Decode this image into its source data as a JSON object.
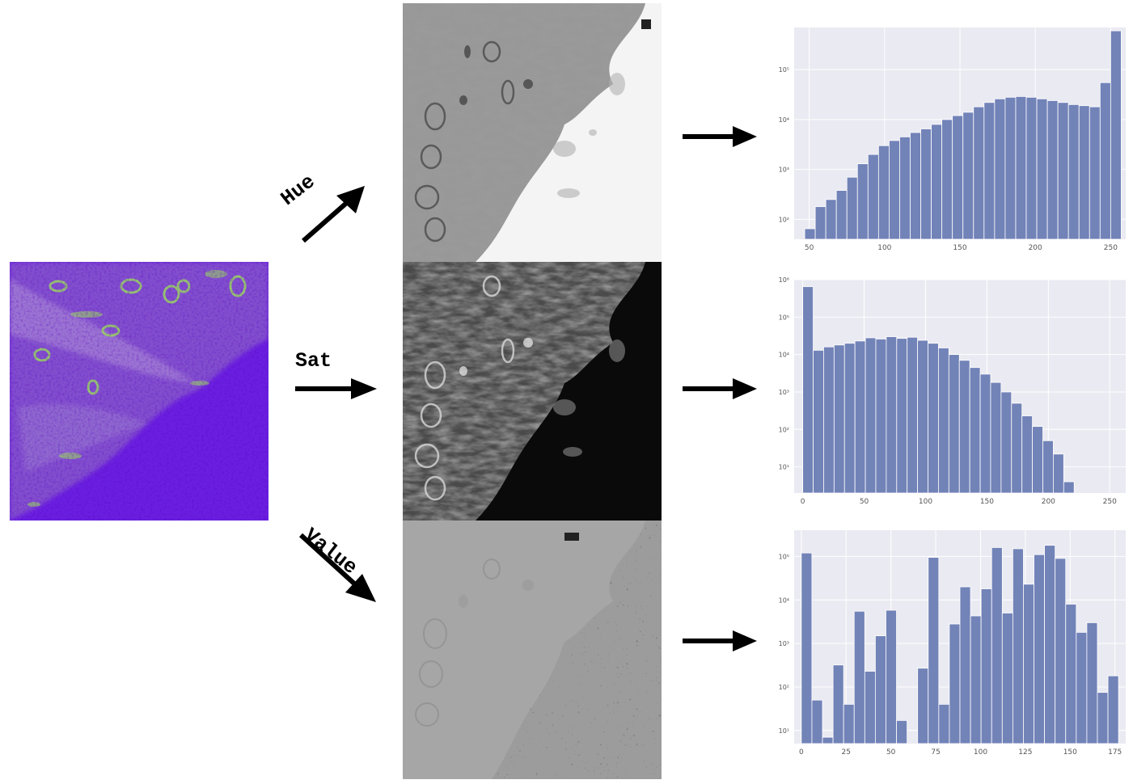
{
  "labels": {
    "hue": "Hue",
    "sat": "Sat",
    "value": "Value"
  },
  "colors": {
    "hsv_purple": "#6a1fe0",
    "hsv_green": "#8fd14f",
    "hist_bar": "#7283b8",
    "hist_bg": "#eaeaf2"
  },
  "chart_data": [
    {
      "type": "bar",
      "yscale": "log",
      "xticks": [
        "50",
        "100",
        "150",
        "200",
        "250"
      ],
      "yticks": [
        "10²",
        "10³",
        "10⁴",
        "10⁵"
      ],
      "ylim": [
        40,
        700000
      ],
      "xlim": [
        40,
        260
      ],
      "bin_start": 47,
      "bin_width": 7,
      "values": [
        65,
        180,
        250,
        380,
        700,
        1300,
        2000,
        3000,
        3800,
        4500,
        5500,
        6500,
        8000,
        10000,
        12000,
        14000,
        18000,
        22000,
        26000,
        28000,
        29000,
        28000,
        26000,
        24000,
        22000,
        20000,
        19000,
        18000,
        55000,
        600000
      ]
    },
    {
      "type": "bar",
      "yscale": "log",
      "xticks": [
        "0",
        "50",
        "100",
        "150",
        "200",
        "250"
      ],
      "yticks": [
        "10¹",
        "10²",
        "10³",
        "10⁴",
        "10⁵",
        "10⁶"
      ],
      "ylim": [
        2,
        1000000
      ],
      "xlim": [
        -7,
        263
      ],
      "bin_start": 0,
      "bin_width": 8.5,
      "values": [
        650000,
        13000,
        16000,
        18000,
        20000,
        23000,
        28000,
        26000,
        30000,
        27000,
        29000,
        24000,
        20000,
        15000,
        10000,
        7000,
        4500,
        3000,
        1800,
        1000,
        500,
        230,
        120,
        50,
        22,
        4
      ]
    },
    {
      "type": "bar",
      "yscale": "log",
      "xticks": [
        "0",
        "25",
        "50",
        "75",
        "100",
        "125",
        "150",
        "175"
      ],
      "yticks": [
        "10¹",
        "10²",
        "10³",
        "10⁴",
        "10⁵"
      ],
      "ylim": [
        5,
        400000
      ],
      "xlim": [
        -4,
        181
      ],
      "bin_start": 0,
      "bin_width": 5.9,
      "values": [
        120000,
        50,
        7,
        320,
        40,
        5500,
        230,
        1500,
        5800,
        17,
        0,
        270,
        95000,
        40,
        2800,
        20000,
        4300,
        18000,
        160000,
        5000,
        150000,
        23000,
        110000,
        180000,
        90000,
        8000,
        1800,
        3000,
        75,
        180
      ]
    }
  ]
}
